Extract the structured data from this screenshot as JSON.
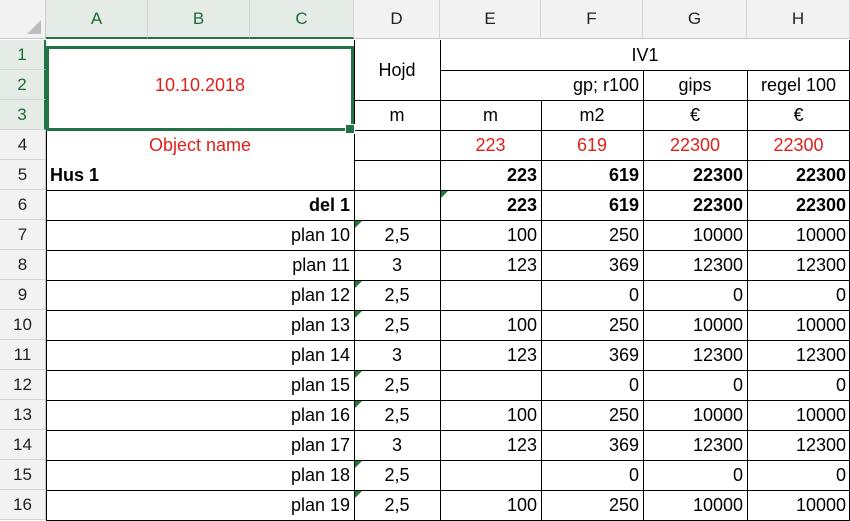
{
  "columns": [
    "A",
    "B",
    "C",
    "D",
    "E",
    "F",
    "G",
    "H"
  ],
  "rows": [
    "1",
    "2",
    "3",
    "4",
    "5",
    "6",
    "7",
    "8",
    "9",
    "10",
    "11",
    "12",
    "13",
    "14",
    "15",
    "16"
  ],
  "header": {
    "date": "10.10.2018",
    "object_name": "Object name",
    "hojd": "Hojd",
    "iv1": "IV1",
    "gp_r100": "gp; r100",
    "gips": "gips",
    "regel": "regel 100",
    "unit_m": "m",
    "unit_e": "m",
    "unit_f": "m2",
    "unit_g": "€",
    "unit_h": "€"
  },
  "totals": {
    "e": "223",
    "f": "619",
    "g": "22300",
    "h": "22300"
  },
  "hus": {
    "label": "Hus 1",
    "e": "223",
    "f": "619",
    "g": "22300",
    "h": "22300"
  },
  "del": {
    "label": "del 1",
    "e": "223",
    "f": "619",
    "g": "22300",
    "h": "22300"
  },
  "plans": [
    {
      "label": "plan 10",
      "d": "2,5",
      "e": "100",
      "f": "250",
      "g": "10000",
      "h": "10000"
    },
    {
      "label": "plan 11",
      "d": "3",
      "e": "123",
      "f": "369",
      "g": "12300",
      "h": "12300"
    },
    {
      "label": "plan 12",
      "d": "2,5",
      "e": "",
      "f": "0",
      "g": "0",
      "h": "0"
    },
    {
      "label": "plan 13",
      "d": "2,5",
      "e": "100",
      "f": "250",
      "g": "10000",
      "h": "10000"
    },
    {
      "label": "plan 14",
      "d": "3",
      "e": "123",
      "f": "369",
      "g": "12300",
      "h": "12300"
    },
    {
      "label": "plan 15",
      "d": "2,5",
      "e": "",
      "f": "0",
      "g": "0",
      "h": "0"
    },
    {
      "label": "plan 16",
      "d": "2,5",
      "e": "100",
      "f": "250",
      "g": "10000",
      "h": "10000"
    },
    {
      "label": "plan 17",
      "d": "3",
      "e": "123",
      "f": "369",
      "g": "12300",
      "h": "12300"
    },
    {
      "label": "plan 18",
      "d": "2,5",
      "e": "",
      "f": "0",
      "g": "0",
      "h": "0"
    },
    {
      "label": "plan 19",
      "d": "2,5",
      "e": "100",
      "f": "250",
      "g": "10000",
      "h": "10000"
    }
  ],
  "colors": {
    "accent": "#217346",
    "red": "#e0201a"
  }
}
